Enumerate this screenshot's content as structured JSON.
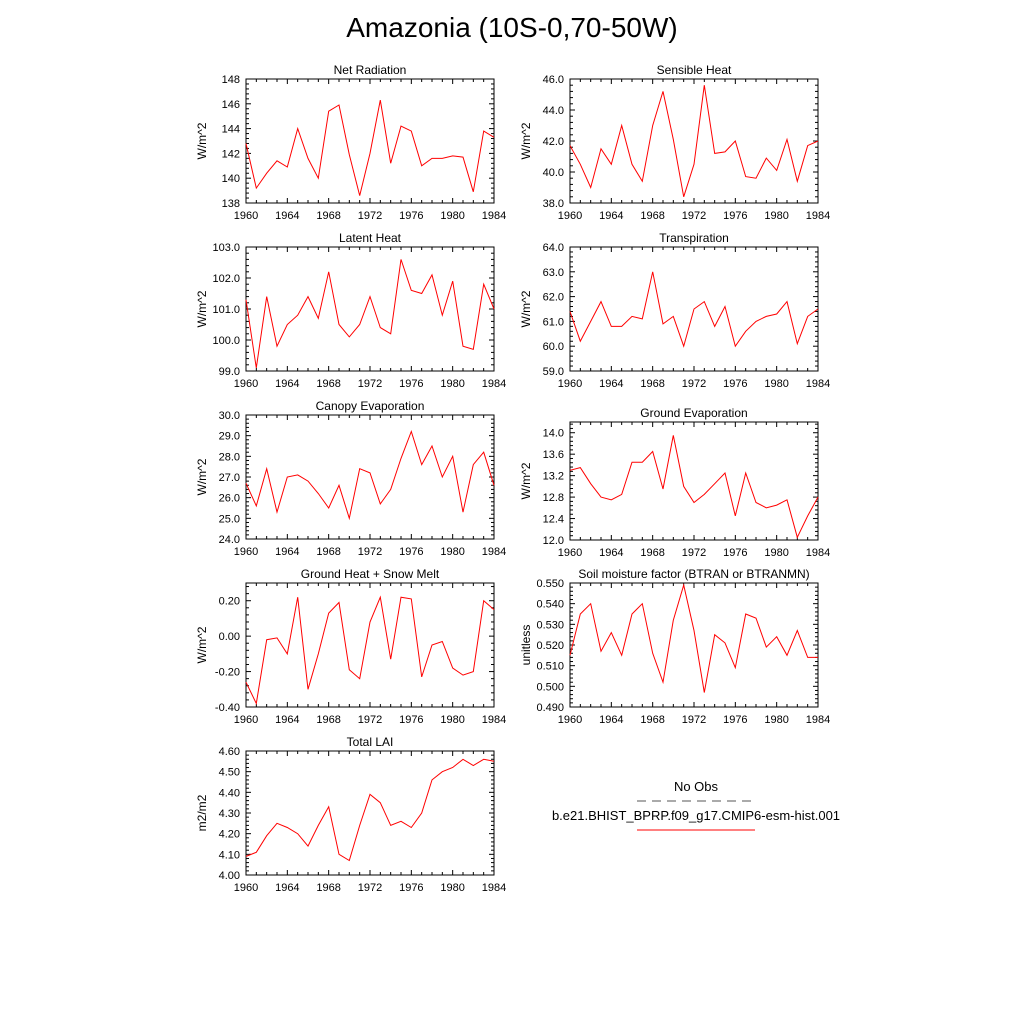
{
  "page_title": "Amazonia (10S-0,70-50W)",
  "legend": {
    "obs_label": "No Obs",
    "model_label": "b.e21.BHIST_BPRP.f09_g17.CMIP6-esm-hist.001",
    "obs_color": "#555555",
    "model_color": "#ff0000"
  },
  "chart_data": [
    {
      "type": "line",
      "title": "Net Radiation",
      "ylabel": "W/m^2",
      "xlim": [
        1960,
        1984
      ],
      "ylim": [
        138,
        148
      ],
      "x_ticks": [
        1960,
        1964,
        1968,
        1972,
        1976,
        1980,
        1984
      ],
      "y_ticks": [
        138,
        140,
        142,
        144,
        146,
        148
      ],
      "y_decimals": 0,
      "x": [
        1960,
        1961,
        1962,
        1963,
        1964,
        1965,
        1966,
        1967,
        1968,
        1969,
        1970,
        1971,
        1972,
        1973,
        1974,
        1975,
        1976,
        1977,
        1978,
        1979,
        1980,
        1981,
        1982,
        1983,
        1984
      ],
      "series": [
        {
          "values": [
            142.8,
            139.2,
            140.4,
            141.4,
            140.9,
            144.0,
            141.6,
            140.0,
            145.4,
            145.9,
            141.9,
            138.6,
            142.0,
            146.3,
            141.2,
            144.2,
            143.8,
            141.0,
            141.6,
            141.6,
            141.8,
            141.7,
            138.9,
            143.8,
            143.3
          ]
        }
      ]
    },
    {
      "type": "line",
      "title": "Sensible Heat",
      "ylabel": "W/m^2",
      "xlim": [
        1960,
        1984
      ],
      "ylim": [
        38,
        46
      ],
      "x_ticks": [
        1960,
        1964,
        1968,
        1972,
        1976,
        1980,
        1984
      ],
      "y_ticks": [
        38,
        40,
        42,
        44,
        46
      ],
      "y_decimals": 1,
      "x": [
        1960,
        1961,
        1962,
        1963,
        1964,
        1965,
        1966,
        1967,
        1968,
        1969,
        1970,
        1971,
        1972,
        1973,
        1974,
        1975,
        1976,
        1977,
        1978,
        1979,
        1980,
        1981,
        1982,
        1983,
        1984
      ],
      "series": [
        {
          "values": [
            41.7,
            40.5,
            39.0,
            41.5,
            40.5,
            43.0,
            40.5,
            39.4,
            43.0,
            45.2,
            42.1,
            38.4,
            40.5,
            45.6,
            41.2,
            41.3,
            42.0,
            39.7,
            39.6,
            40.9,
            40.1,
            42.1,
            39.4,
            41.7,
            42.0
          ]
        }
      ]
    },
    {
      "type": "line",
      "title": "Latent Heat",
      "ylabel": "W/m^2",
      "xlim": [
        1960,
        1984
      ],
      "ylim": [
        99,
        103
      ],
      "x_ticks": [
        1960,
        1964,
        1968,
        1972,
        1976,
        1980,
        1984
      ],
      "y_ticks": [
        99,
        100,
        101,
        102,
        103
      ],
      "y_decimals": 1,
      "x": [
        1960,
        1961,
        1962,
        1963,
        1964,
        1965,
        1966,
        1967,
        1968,
        1969,
        1970,
        1971,
        1972,
        1973,
        1974,
        1975,
        1976,
        1977,
        1978,
        1979,
        1980,
        1981,
        1982,
        1983,
        1984
      ],
      "series": [
        {
          "values": [
            101.3,
            99.1,
            101.4,
            99.8,
            100.5,
            100.8,
            101.4,
            100.7,
            102.2,
            100.5,
            100.1,
            100.5,
            101.4,
            100.4,
            100.2,
            102.6,
            101.6,
            101.5,
            102.1,
            100.8,
            101.9,
            99.8,
            99.7,
            101.8,
            101.0
          ]
        }
      ]
    },
    {
      "type": "line",
      "title": "Transpiration",
      "ylabel": "W/m^2",
      "xlim": [
        1960,
        1984
      ],
      "ylim": [
        59,
        64
      ],
      "x_ticks": [
        1960,
        1964,
        1968,
        1972,
        1976,
        1980,
        1984
      ],
      "y_ticks": [
        59,
        60,
        61,
        62,
        63,
        64
      ],
      "y_decimals": 1,
      "x": [
        1960,
        1961,
        1962,
        1963,
        1964,
        1965,
        1966,
        1967,
        1968,
        1969,
        1970,
        1971,
        1972,
        1973,
        1974,
        1975,
        1976,
        1977,
        1978,
        1979,
        1980,
        1981,
        1982,
        1983,
        1984
      ],
      "series": [
        {
          "values": [
            61.4,
            60.2,
            61.0,
            61.8,
            60.8,
            60.8,
            61.2,
            61.1,
            63.0,
            60.9,
            61.2,
            60.0,
            61.5,
            61.8,
            60.8,
            61.6,
            60.0,
            60.6,
            61.0,
            61.2,
            61.3,
            61.8,
            60.1,
            61.2,
            61.5
          ]
        }
      ]
    },
    {
      "type": "line",
      "title": "Canopy Evaporation",
      "ylabel": "W/m^2",
      "xlim": [
        1960,
        1984
      ],
      "ylim": [
        24,
        30
      ],
      "x_ticks": [
        1960,
        1964,
        1968,
        1972,
        1976,
        1980,
        1984
      ],
      "y_ticks": [
        24,
        25,
        26,
        27,
        28,
        29,
        30
      ],
      "y_decimals": 1,
      "x": [
        1960,
        1961,
        1962,
        1963,
        1964,
        1965,
        1966,
        1967,
        1968,
        1969,
        1970,
        1971,
        1972,
        1973,
        1974,
        1975,
        1976,
        1977,
        1978,
        1979,
        1980,
        1981,
        1982,
        1983,
        1984
      ],
      "series": [
        {
          "values": [
            26.7,
            25.6,
            27.4,
            25.3,
            27.0,
            27.1,
            26.8,
            26.2,
            25.5,
            26.6,
            25.0,
            27.4,
            27.2,
            25.7,
            26.4,
            27.9,
            29.2,
            27.6,
            28.5,
            27.0,
            28.0,
            25.3,
            27.6,
            28.2,
            26.6
          ]
        }
      ]
    },
    {
      "type": "line",
      "title": "Ground Evaporation",
      "ylabel": "W/m^2",
      "xlim": [
        1960,
        1984
      ],
      "ylim": [
        12,
        14.2
      ],
      "x_ticks": [
        1960,
        1964,
        1968,
        1972,
        1976,
        1980,
        1984
      ],
      "y_ticks": [
        12.0,
        12.4,
        12.8,
        13.2,
        13.6,
        14.0
      ],
      "y_decimals": 1,
      "x": [
        1960,
        1961,
        1962,
        1963,
        1964,
        1965,
        1966,
        1967,
        1968,
        1969,
        1970,
        1971,
        1972,
        1973,
        1974,
        1975,
        1976,
        1977,
        1978,
        1979,
        1980,
        1981,
        1982,
        1983,
        1984
      ],
      "series": [
        {
          "values": [
            13.3,
            13.35,
            13.05,
            12.8,
            12.75,
            12.85,
            13.45,
            13.45,
            13.65,
            12.95,
            13.95,
            13.0,
            12.7,
            12.85,
            13.05,
            13.25,
            12.45,
            13.25,
            12.7,
            12.6,
            12.65,
            12.75,
            12.05,
            12.45,
            12.8
          ]
        }
      ]
    },
    {
      "type": "line",
      "title": "Ground Heat + Snow Melt",
      "ylabel": "W/m^2",
      "xlim": [
        1960,
        1984
      ],
      "ylim": [
        -0.4,
        0.3
      ],
      "x_ticks": [
        1960,
        1964,
        1968,
        1972,
        1976,
        1980,
        1984
      ],
      "y_ticks": [
        -0.4,
        -0.2,
        0.0,
        0.2
      ],
      "y_decimals": 2,
      "x": [
        1960,
        1961,
        1962,
        1963,
        1964,
        1965,
        1966,
        1967,
        1968,
        1969,
        1970,
        1971,
        1972,
        1973,
        1974,
        1975,
        1976,
        1977,
        1978,
        1979,
        1980,
        1981,
        1982,
        1983,
        1984
      ],
      "series": [
        {
          "values": [
            -0.26,
            -0.38,
            -0.02,
            -0.01,
            -0.1,
            0.22,
            -0.3,
            -0.1,
            0.13,
            0.19,
            -0.19,
            -0.24,
            0.08,
            0.22,
            -0.13,
            0.22,
            0.21,
            -0.23,
            -0.05,
            -0.03,
            -0.18,
            -0.22,
            -0.2,
            0.2,
            0.15
          ]
        }
      ]
    },
    {
      "type": "line",
      "title": "Soil moisture factor (BTRAN or BTRANMN)",
      "ylabel": "unitless",
      "xlim": [
        1960,
        1984
      ],
      "ylim": [
        0.49,
        0.55
      ],
      "x_ticks": [
        1960,
        1964,
        1968,
        1972,
        1976,
        1980,
        1984
      ],
      "y_ticks": [
        0.49,
        0.5,
        0.51,
        0.52,
        0.53,
        0.54,
        0.55
      ],
      "y_decimals": 3,
      "x": [
        1960,
        1961,
        1962,
        1963,
        1964,
        1965,
        1966,
        1967,
        1968,
        1969,
        1970,
        1971,
        1972,
        1973,
        1974,
        1975,
        1976,
        1977,
        1978,
        1979,
        1980,
        1981,
        1982,
        1983,
        1984
      ],
      "series": [
        {
          "values": [
            0.515,
            0.535,
            0.54,
            0.517,
            0.526,
            0.515,
            0.535,
            0.54,
            0.516,
            0.502,
            0.532,
            0.549,
            0.527,
            0.497,
            0.525,
            0.521,
            0.509,
            0.535,
            0.533,
            0.519,
            0.524,
            0.515,
            0.527,
            0.514,
            0.514
          ]
        }
      ]
    },
    {
      "type": "line",
      "title": "Total LAI",
      "ylabel": "m2/m2",
      "xlim": [
        1960,
        1984
      ],
      "ylim": [
        4.0,
        4.6
      ],
      "x_ticks": [
        1960,
        1964,
        1968,
        1972,
        1976,
        1980,
        1984
      ],
      "y_ticks": [
        4.0,
        4.1,
        4.2,
        4.3,
        4.4,
        4.5,
        4.6
      ],
      "y_decimals": 2,
      "x": [
        1960,
        1961,
        1962,
        1963,
        1964,
        1965,
        1966,
        1967,
        1968,
        1969,
        1970,
        1971,
        1972,
        1973,
        1974,
        1975,
        1976,
        1977,
        1978,
        1979,
        1980,
        1981,
        1982,
        1983,
        1984
      ],
      "series": [
        {
          "values": [
            4.09,
            4.11,
            4.19,
            4.25,
            4.23,
            4.2,
            4.14,
            4.24,
            4.33,
            4.1,
            4.07,
            4.24,
            4.39,
            4.35,
            4.24,
            4.26,
            4.23,
            4.3,
            4.46,
            4.5,
            4.52,
            4.56,
            4.53,
            4.56,
            4.55
          ]
        }
      ]
    }
  ]
}
